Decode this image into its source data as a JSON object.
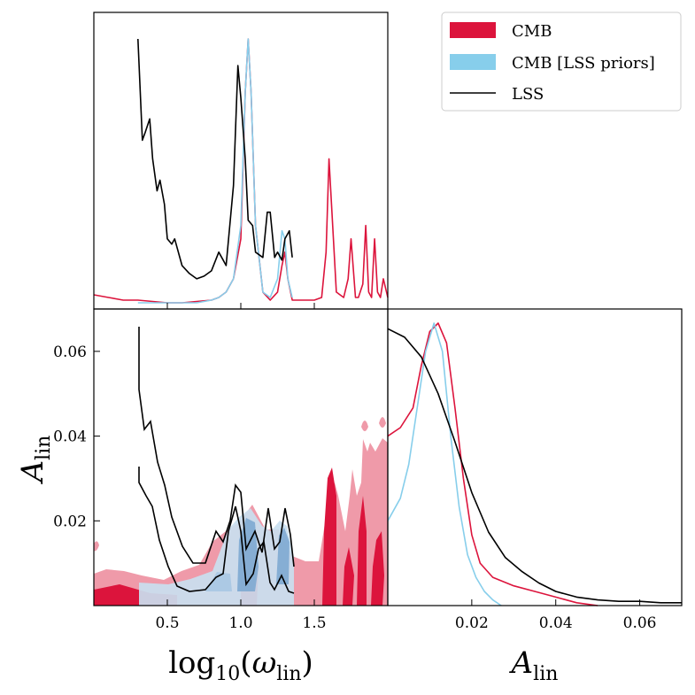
{
  "chart_data": {
    "type": "corner",
    "colors": {
      "cmb": "#dc143c",
      "cmb_lss": "#87ceeb",
      "lss": "#000000",
      "cmb_fill_light": "#ef9aa9",
      "cmb_lss_fill_light": "#c9dff0",
      "cmb_lss_fill_dark": "#7ea9d1"
    },
    "legend": {
      "placement": "top-right",
      "entries": [
        {
          "label": "CMB",
          "kind": "patch",
          "color": "#dc143c"
        },
        {
          "label": "CMB [LSS priors]",
          "kind": "patch",
          "color": "#87ceeb"
        },
        {
          "label": "LSS",
          "kind": "line",
          "color": "#000000"
        }
      ]
    },
    "xlabel_main": "log10(ωlin)",
    "xlabel_main_parts": {
      "base": "log",
      "sub": "10",
      "open": "(",
      "sym": "ω",
      "subsym": "lin",
      "close": ")"
    },
    "ylabel_main": "Alin",
    "ylabel_main_parts": {
      "sym": "A",
      "sub": "lin"
    },
    "xlabel_right": "Alin",
    "xlabel_right_parts": {
      "sym": "A",
      "sub": "lin"
    },
    "x_omega_range": [
      0.0,
      2.0
    ],
    "y_amp_range": [
      0.0,
      0.07
    ],
    "x_omega_ticks": [
      {
        "value": 0.5,
        "label": "0.5"
      },
      {
        "value": 1.0,
        "label": "1.0"
      },
      {
        "value": 1.5,
        "label": "1.5"
      }
    ],
    "y_amp_ticks": [
      {
        "value": 0.02,
        "label": "0.02"
      },
      {
        "value": 0.04,
        "label": "0.04"
      },
      {
        "value": 0.06,
        "label": "0.06"
      }
    ],
    "x_amp_ticks": [
      {
        "value": 0.02,
        "label": "0.02"
      },
      {
        "value": 0.04,
        "label": "0.04"
      },
      {
        "value": 0.06,
        "label": "0.06"
      }
    ],
    "omega_marginal": {
      "ylim": [
        0,
        1.0
      ],
      "series": [
        {
          "name": "CMB",
          "x": [
            0.0,
            0.1,
            0.2,
            0.3,
            0.4,
            0.5,
            0.6,
            0.7,
            0.8,
            0.85,
            0.9,
            0.95,
            1.0,
            1.03,
            1.05,
            1.07,
            1.1,
            1.15,
            1.2,
            1.25,
            1.28,
            1.3,
            1.32,
            1.35,
            1.4,
            1.5,
            1.55,
            1.58,
            1.6,
            1.65,
            1.7,
            1.73,
            1.75,
            1.78,
            1.8,
            1.83,
            1.85,
            1.87,
            1.89,
            1.91,
            1.93,
            1.95,
            1.97,
            2.0
          ],
          "y": [
            0.04,
            0.03,
            0.02,
            0.02,
            0.015,
            0.01,
            0.01,
            0.015,
            0.02,
            0.03,
            0.05,
            0.1,
            0.25,
            0.8,
            1.0,
            0.8,
            0.3,
            0.05,
            0.02,
            0.05,
            0.15,
            0.2,
            0.1,
            0.02,
            0.02,
            0.02,
            0.03,
            0.2,
            0.55,
            0.05,
            0.03,
            0.1,
            0.25,
            0.03,
            0.03,
            0.08,
            0.3,
            0.05,
            0.03,
            0.25,
            0.05,
            0.03,
            0.1,
            0.03
          ]
        },
        {
          "name": "CMB [LSS priors]",
          "x": [
            0.3,
            0.4,
            0.5,
            0.6,
            0.7,
            0.8,
            0.85,
            0.9,
            0.95,
            1.0,
            1.03,
            1.05,
            1.07,
            1.1,
            1.15,
            1.2,
            1.25,
            1.28,
            1.3,
            1.32,
            1.35
          ],
          "y": [
            0.01,
            0.01,
            0.01,
            0.01,
            0.01,
            0.02,
            0.03,
            0.05,
            0.1,
            0.3,
            0.8,
            1.0,
            0.8,
            0.3,
            0.05,
            0.03,
            0.1,
            0.28,
            0.25,
            0.1,
            0.03
          ]
        },
        {
          "name": "LSS",
          "x": [
            0.3,
            0.33,
            0.35,
            0.38,
            0.4,
            0.43,
            0.45,
            0.48,
            0.5,
            0.53,
            0.55,
            0.6,
            0.65,
            0.7,
            0.75,
            0.8,
            0.85,
            0.88,
            0.9,
            0.95,
            0.98,
            1.0,
            1.03,
            1.05,
            1.08,
            1.1,
            1.15,
            1.18,
            1.2,
            1.23,
            1.25,
            1.28,
            1.3,
            1.33,
            1.35
          ],
          "y": [
            1.0,
            0.62,
            0.65,
            0.7,
            0.55,
            0.43,
            0.47,
            0.38,
            0.25,
            0.23,
            0.25,
            0.15,
            0.12,
            0.1,
            0.11,
            0.13,
            0.2,
            0.17,
            0.15,
            0.45,
            0.9,
            0.78,
            0.55,
            0.32,
            0.3,
            0.2,
            0.18,
            0.35,
            0.35,
            0.18,
            0.2,
            0.17,
            0.25,
            0.28,
            0.18
          ]
        }
      ]
    },
    "amp_marginal": {
      "ylim": [
        0,
        1.05
      ],
      "series": [
        {
          "name": "CMB",
          "x": [
            0.0,
            0.003,
            0.006,
            0.008,
            0.01,
            0.012,
            0.014,
            0.016,
            0.018,
            0.02,
            0.022,
            0.025,
            0.03,
            0.035,
            0.04,
            0.045,
            0.05
          ],
          "y": [
            0.6,
            0.63,
            0.7,
            0.85,
            0.97,
            1.0,
            0.93,
            0.7,
            0.45,
            0.25,
            0.15,
            0.1,
            0.07,
            0.05,
            0.03,
            0.01,
            0.0
          ]
        },
        {
          "name": "CMB [LSS priors]",
          "x": [
            0.0,
            0.003,
            0.005,
            0.007,
            0.009,
            0.011,
            0.013,
            0.015,
            0.017,
            0.019,
            0.021,
            0.023,
            0.025,
            0.027
          ],
          "y": [
            0.3,
            0.38,
            0.5,
            0.7,
            0.9,
            1.0,
            0.9,
            0.6,
            0.35,
            0.18,
            0.1,
            0.05,
            0.02,
            0.0
          ]
        },
        {
          "name": "LSS",
          "x": [
            0.0,
            0.004,
            0.008,
            0.012,
            0.016,
            0.02,
            0.024,
            0.028,
            0.032,
            0.036,
            0.04,
            0.045,
            0.05,
            0.055,
            0.06,
            0.065,
            0.07
          ],
          "y": [
            0.98,
            0.95,
            0.88,
            0.75,
            0.58,
            0.4,
            0.26,
            0.17,
            0.12,
            0.08,
            0.05,
            0.03,
            0.02,
            0.015,
            0.015,
            0.01,
            0.01
          ]
        }
      ]
    }
  }
}
